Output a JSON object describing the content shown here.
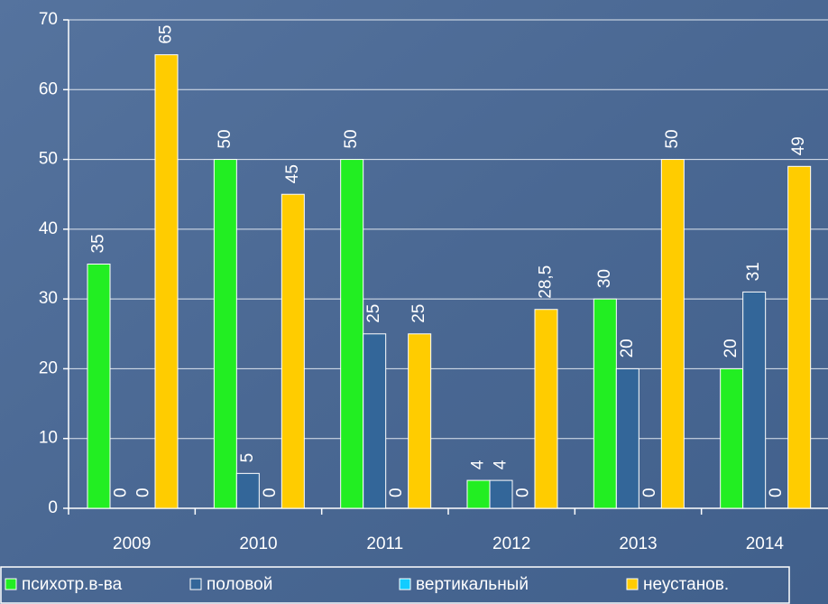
{
  "chart_data": {
    "type": "bar",
    "categories": [
      "2009",
      "2010",
      "2011",
      "2012",
      "2013",
      "2014"
    ],
    "series": [
      {
        "name": "психотр.в-ва",
        "color": "#22ee22",
        "values": [
          35,
          50,
          50,
          4,
          30,
          20
        ]
      },
      {
        "name": "половой",
        "color": "#336699",
        "values": [
          0,
          5,
          25,
          4,
          20,
          31
        ]
      },
      {
        "name": "вертикальный",
        "color": "#11ccff",
        "values": [
          0,
          0,
          0,
          0,
          0,
          0
        ]
      },
      {
        "name": "неустанов.",
        "color": "#ffcc00",
        "values": [
          65,
          45,
          25,
          28.5,
          50,
          49
        ],
        "value_labels": [
          "65",
          "45",
          "25",
          "28,5",
          "50",
          "49"
        ]
      }
    ],
    "ylim": [
      0,
      70
    ],
    "yticks": [
      0,
      10,
      20,
      30,
      40,
      50,
      60,
      70
    ],
    "grid": true,
    "legend": "bottom"
  }
}
